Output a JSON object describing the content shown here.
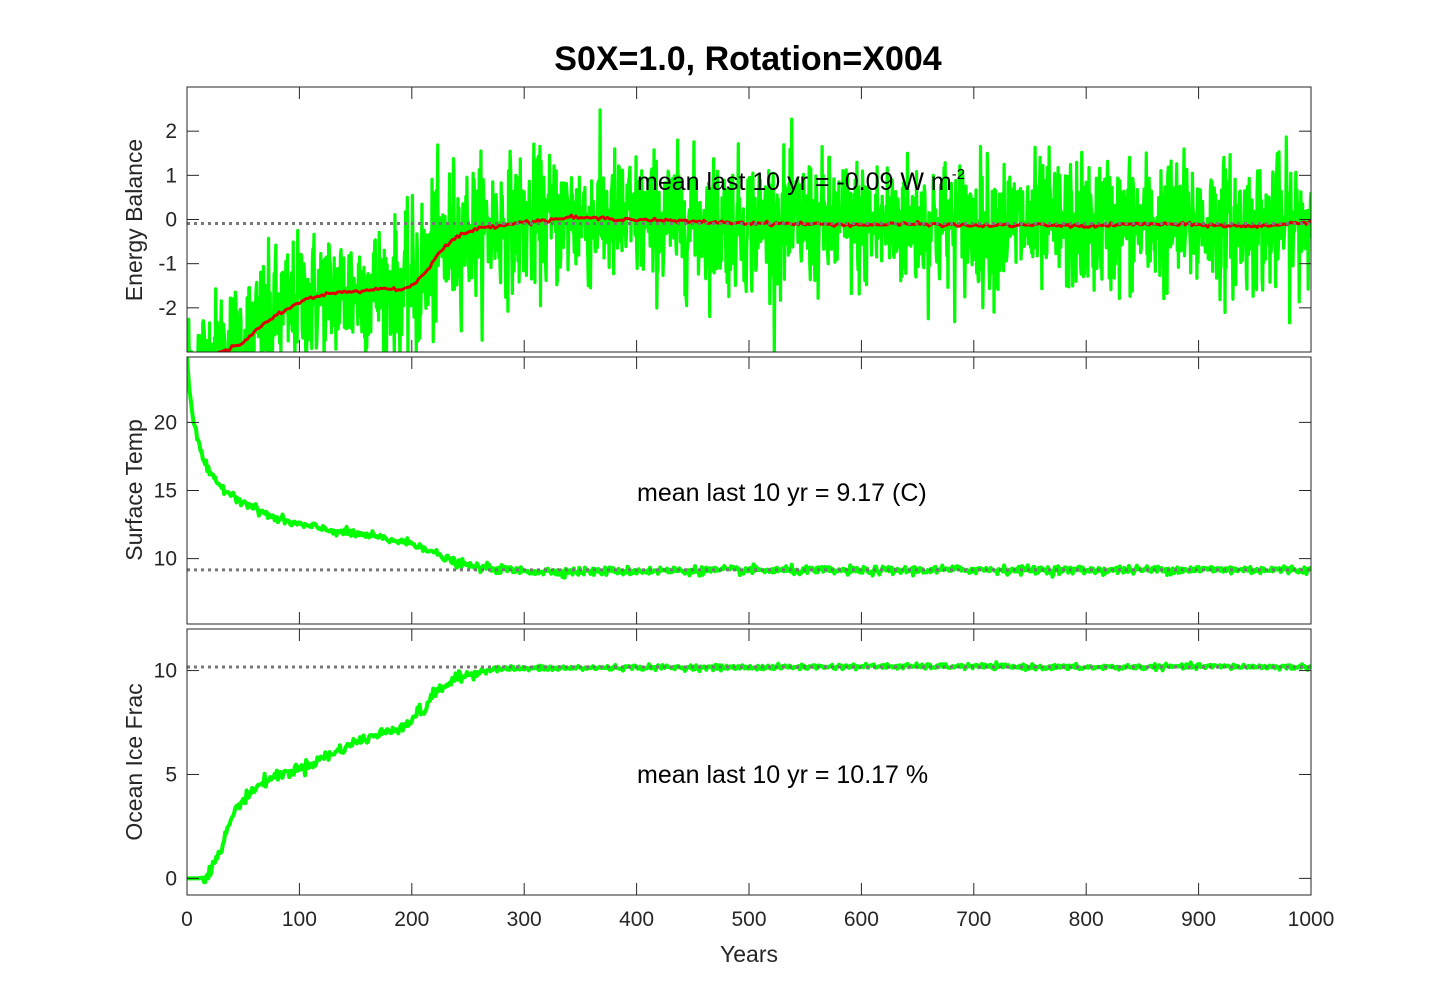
{
  "chart_data": {
    "type": "line",
    "title": "S0X=1.0, Rotation=X004",
    "xlabel": "Years",
    "xlim": [
      0,
      1000
    ],
    "xticks": [
      "0",
      "100",
      "200",
      "300",
      "400",
      "500",
      "600",
      "700",
      "800",
      "900",
      "1000"
    ],
    "panels": [
      {
        "ylabel": "Energy Balance",
        "ylim": [
          -3.0,
          3.0
        ],
        "yticks": [
          "-2",
          "-1",
          "0",
          "1",
          "2"
        ],
        "annotation": "mean last 10 yr = -0.09 W m",
        "annotation_sup": "-2",
        "reference_line": -0.09,
        "noise_amplitude": 0.75,
        "series": [
          {
            "color": "#00ff00",
            "kind": "raw",
            "x": [
              0,
              10,
              20,
              30,
              40,
              50,
              60,
              70,
              80,
              90,
              100,
              120,
              140,
              160,
              180,
              190,
              200,
              210,
              220,
              230,
              240,
              250,
              260,
              280,
              300,
              320,
              340,
              360,
              380,
              400,
              450,
              500,
              550,
              600,
              650,
              700,
              750,
              800,
              850,
              900,
              950,
              1000
            ],
            "values": [
              -3.3,
              -3.3,
              -3.2,
              -3.0,
              -2.9,
              -2.8,
              -2.55,
              -2.35,
              -2.15,
              -2.05,
              -1.85,
              -1.7,
              -1.65,
              -1.6,
              -1.55,
              -1.6,
              -1.5,
              -1.25,
              -0.9,
              -0.6,
              -0.4,
              -0.28,
              -0.2,
              -0.12,
              -0.06,
              -0.02,
              0.05,
              0.03,
              0.02,
              0.0,
              -0.05,
              -0.08,
              -0.1,
              -0.12,
              -0.1,
              -0.14,
              -0.12,
              -0.15,
              -0.1,
              -0.12,
              -0.16,
              -0.05
            ]
          },
          {
            "color": "#e00000",
            "kind": "smoothed",
            "x": [
              0,
              10,
              20,
              30,
              40,
              50,
              60,
              70,
              80,
              90,
              100,
              120,
              140,
              160,
              180,
              190,
              200,
              210,
              220,
              230,
              240,
              250,
              260,
              280,
              300,
              320,
              340,
              360,
              380,
              400,
              450,
              500,
              550,
              600,
              650,
              700,
              750,
              800,
              850,
              900,
              950,
              1000
            ],
            "values": [
              -3.3,
              -3.3,
              -3.2,
              -3.0,
              -2.9,
              -2.8,
              -2.55,
              -2.35,
              -2.15,
              -2.05,
              -1.85,
              -1.7,
              -1.65,
              -1.6,
              -1.55,
              -1.6,
              -1.5,
              -1.25,
              -0.9,
              -0.6,
              -0.4,
              -0.28,
              -0.2,
              -0.12,
              -0.06,
              -0.02,
              0.05,
              0.03,
              0.02,
              0.0,
              -0.05,
              -0.08,
              -0.1,
              -0.12,
              -0.1,
              -0.14,
              -0.12,
              -0.15,
              -0.1,
              -0.12,
              -0.16,
              -0.05
            ]
          }
        ]
      },
      {
        "ylabel": "Surface Temp",
        "ylim": [
          5.2,
          24.8
        ],
        "yticks": [
          "10",
          "15",
          "20"
        ],
        "annotation": "mean last 10 yr = 9.17 (C)",
        "annotation_sup": "",
        "reference_line": 9.17,
        "noise_amplitude": 0.15,
        "series": [
          {
            "color": "#00ff00",
            "kind": "raw",
            "x": [
              0,
              2,
              5,
              10,
              15,
              20,
              30,
              40,
              50,
              60,
              70,
              80,
              100,
              120,
              140,
              160,
              180,
              200,
              210,
              220,
              230,
              240,
              250,
              260,
              270,
              280,
              300,
              320,
              340,
              400,
              500,
              600,
              700,
              800,
              900,
              1000
            ],
            "values": [
              24.8,
              22.5,
              20.5,
              18.5,
              17.2,
              16.2,
              15.3,
              14.7,
              14.2,
              13.7,
              13.3,
              12.9,
              12.5,
              12.2,
              11.9,
              11.7,
              11.4,
              11.1,
              10.9,
              10.4,
              10.0,
              9.7,
              9.5,
              9.35,
              9.3,
              9.2,
              9.1,
              9.05,
              9.05,
              9.1,
              9.15,
              9.1,
              9.2,
              9.15,
              9.2,
              9.17
            ]
          }
        ]
      },
      {
        "ylabel": "Ocean Ice Frac",
        "ylim": [
          -0.8,
          12.0
        ],
        "yticks": [
          "0",
          "5",
          "10"
        ],
        "annotation": "mean last 10 yr = 10.17 %",
        "annotation_sup": "",
        "reference_line": 10.17,
        "noise_amplitude": 0.06,
        "series": [
          {
            "color": "#00ff00",
            "kind": "raw",
            "x": [
              0,
              10,
              15,
              20,
              25,
              30,
              35,
              40,
              50,
              60,
              70,
              80,
              90,
              100,
              110,
              120,
              130,
              140,
              150,
              160,
              170,
              180,
              190,
              200,
              205,
              210,
              215,
              220,
              230,
              240,
              250,
              260,
              270,
              280,
              300,
              400,
              500,
              600,
              700,
              800,
              900,
              1000
            ],
            "values": [
              0.0,
              0.0,
              0.05,
              0.3,
              0.8,
              1.3,
              2.2,
              3.0,
              3.8,
              4.3,
              4.7,
              4.95,
              5.1,
              5.3,
              5.5,
              5.8,
              6.0,
              6.3,
              6.55,
              6.75,
              6.9,
              7.1,
              7.3,
              7.6,
              8.0,
              8.0,
              8.5,
              8.9,
              9.3,
              9.6,
              9.8,
              9.95,
              10.05,
              10.1,
              10.1,
              10.15,
              10.15,
              10.2,
              10.2,
              10.15,
              10.2,
              10.17
            ]
          }
        ]
      }
    ]
  }
}
